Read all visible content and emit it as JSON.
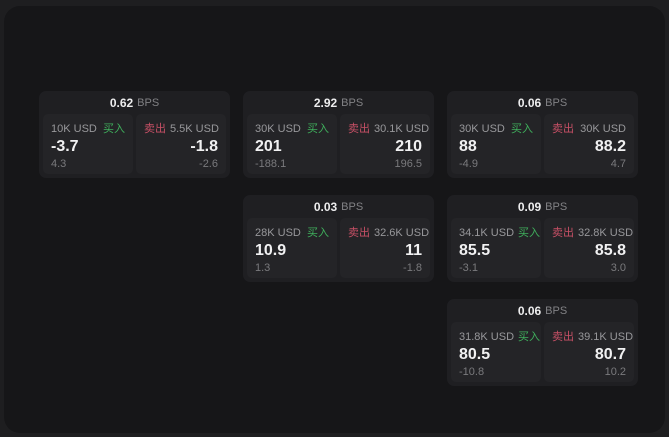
{
  "labels": {
    "buy": "买入",
    "sell": "卖出",
    "bps_unit": "BPS"
  },
  "colors": {
    "buy": "#3faf5c",
    "sell": "#c75066",
    "background": "#1e1e20",
    "panel": "#161618",
    "card": "#1f1f22",
    "side_panel": "#242427"
  },
  "cards": [
    {
      "col": 1,
      "row": 1,
      "bps": "0.62",
      "buy": {
        "notional": "10K USD",
        "price": "-3.7",
        "edge": "4.3"
      },
      "sell": {
        "notional": "5.5K USD",
        "price": "-1.8",
        "edge": "-2.6"
      }
    },
    {
      "col": 2,
      "row": 1,
      "bps": "2.92",
      "buy": {
        "notional": "30K USD",
        "price": "201",
        "edge": "-188.1"
      },
      "sell": {
        "notional": "30.1K USD",
        "price": "210",
        "edge": "196.5"
      }
    },
    {
      "col": 3,
      "row": 1,
      "bps": "0.06",
      "buy": {
        "notional": "30K USD",
        "price": "88",
        "edge": "-4.9"
      },
      "sell": {
        "notional": "30K USD",
        "price": "88.2",
        "edge": "4.7"
      }
    },
    {
      "col": 2,
      "row": 2,
      "bps": "0.03",
      "buy": {
        "notional": "28K USD",
        "price": "10.9",
        "edge": "1.3"
      },
      "sell": {
        "notional": "32.6K USD",
        "price": "11",
        "edge": "-1.8"
      }
    },
    {
      "col": 3,
      "row": 2,
      "bps": "0.09",
      "buy": {
        "notional": "34.1K USD",
        "price": "85.5",
        "edge": "-3.1"
      },
      "sell": {
        "notional": "32.8K USD",
        "price": "85.8",
        "edge": "3.0"
      }
    },
    {
      "col": 3,
      "row": 3,
      "bps": "0.06",
      "buy": {
        "notional": "31.8K USD",
        "price": "80.5",
        "edge": "-10.8"
      },
      "sell": {
        "notional": "39.1K USD",
        "price": "80.7",
        "edge": "10.2"
      }
    }
  ]
}
